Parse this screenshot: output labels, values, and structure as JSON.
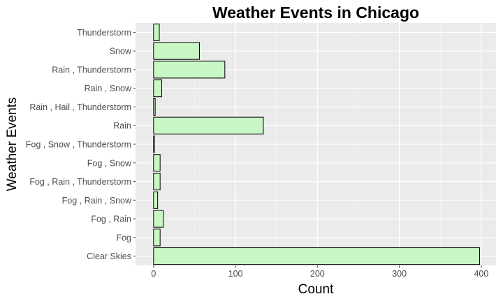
{
  "chart_data": {
    "type": "bar",
    "orientation": "horizontal",
    "title": "Weather Events in Chicago",
    "xlabel": "Count",
    "ylabel": "Weather Events",
    "categories": [
      "Clear Skies",
      "Fog",
      "Fog , Rain",
      "Fog , Rain , Snow",
      "Fog , Rain , Thunderstorm",
      "Fog , Snow",
      "Fog , Snow , Thunderstorm",
      "Rain",
      "Rain , Hail , Thunderstorm",
      "Rain , Snow",
      "Rain , Thunderstorm",
      "Snow",
      "Thunderstorm"
    ],
    "values": [
      398,
      8,
      12,
      5,
      8,
      8,
      1,
      134,
      2,
      10,
      87,
      56,
      7
    ],
    "xlim": [
      -22,
      418
    ],
    "xticks": [
      0,
      100,
      200,
      300,
      400
    ],
    "grid": true,
    "colors": {
      "bar_fill": "#c8f7c5",
      "bar_stroke": "#000000",
      "panel_bg": "#ebebeb",
      "grid_major": "#ffffff"
    }
  }
}
